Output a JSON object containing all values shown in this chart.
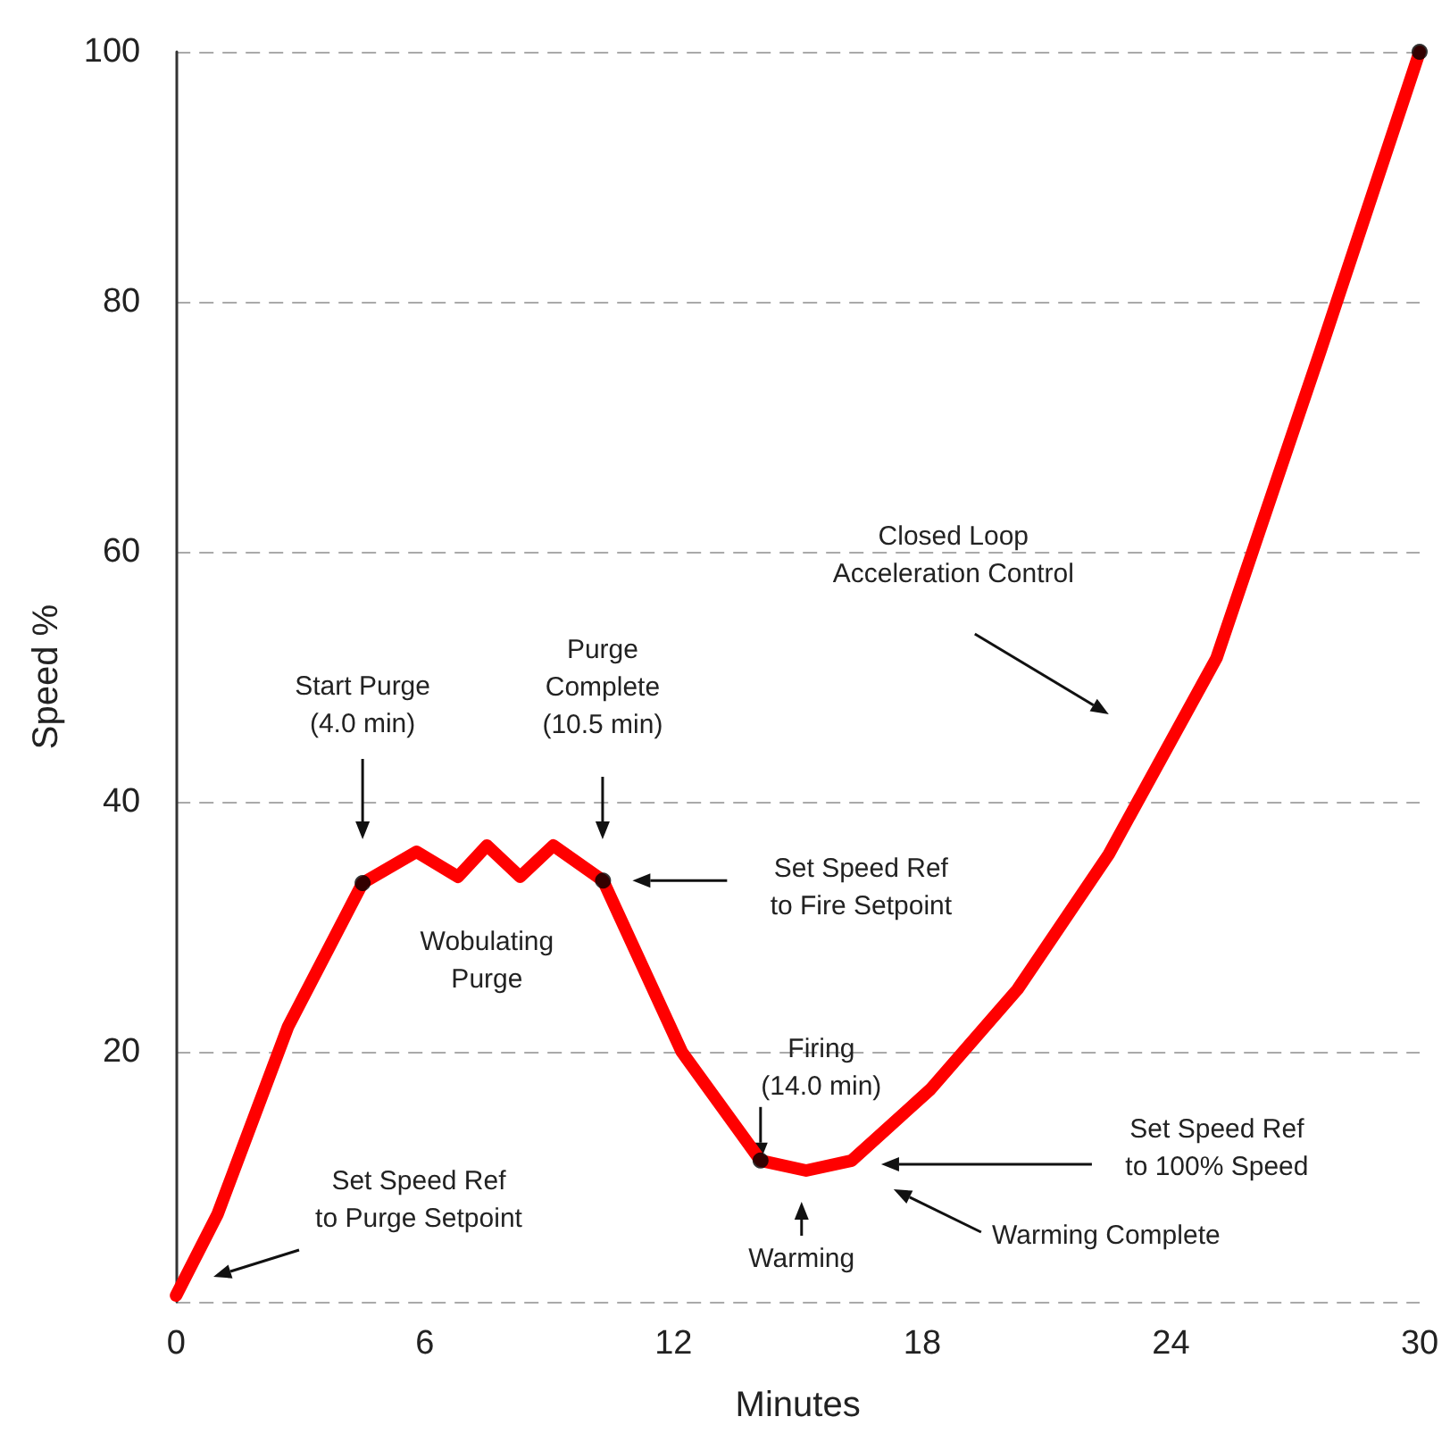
{
  "chart_data": {
    "type": "line",
    "xlabel": "Minutes",
    "ylabel": "Speed %",
    "xlim": [
      0,
      30
    ],
    "xticks": [
      0,
      6,
      12,
      18,
      24,
      30
    ],
    "ylim": [
      0,
      100
    ],
    "yticks": [
      20,
      40,
      60,
      80,
      100
    ],
    "grid": "y",
    "series": [
      {
        "color": "#ff0000",
        "marker": "none",
        "x": [
          0,
          1,
          2.7,
          4.5,
          5.8,
          6.8,
          7.5,
          8.3,
          9.1,
          10.3,
          12.2,
          14.1,
          15.2,
          16.3,
          18.2,
          20.3,
          22.5,
          25.1,
          27.6,
          30
        ],
        "values": [
          0.5,
          7,
          22,
          33.5,
          36,
          34,
          36.5,
          34,
          36.5,
          33.7,
          20,
          11.3,
          10.5,
          11.3,
          17,
          25,
          35.8,
          51.5,
          76,
          100
        ]
      },
      {
        "type": "scatter",
        "color": "#000000",
        "marker": "circle",
        "x": [
          4.5,
          10.3,
          14.1,
          30
        ],
        "values": [
          33.5,
          33.7,
          11.3,
          100
        ]
      }
    ],
    "annotations": [
      "Start Purge\n(4.0 min)",
      "Purge\nComplete\n(10.5 min)",
      "Set Speed Ref\nto Fire Setpoint",
      "Wobulating\nPurge",
      {
        "text": "Firing\n(14.0 min)",
        "x": 14.1,
        "y": 11.3
      },
      "Warming",
      "Warming Complete",
      "Set Speed Ref\nto 100% Speed",
      "Set Speed Ref\nto Purge Setpoint",
      "Closed Loop\nAcceleration Control"
    ]
  }
}
